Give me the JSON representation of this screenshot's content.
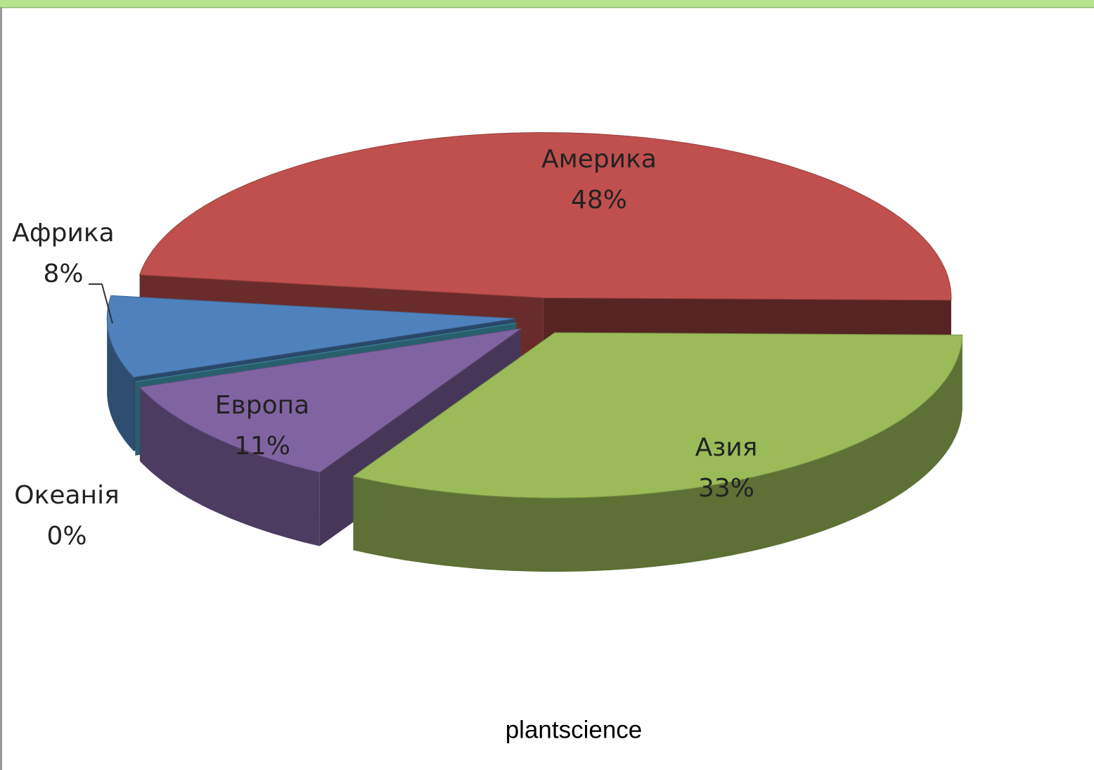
{
  "chart_data": {
    "type": "pie",
    "categories": [
      "Америка",
      "Азия",
      "Европа",
      "Океанія",
      "Африка"
    ],
    "values": [
      48,
      33,
      11,
      0,
      8
    ],
    "value_labels": [
      "48%",
      "33%",
      "11%",
      "0%",
      "8%"
    ],
    "colors": [
      "#c0504d",
      "#9bbb59",
      "#8064a2",
      "#4bacc6",
      "#4f81bd"
    ],
    "source": "plantscience"
  }
}
